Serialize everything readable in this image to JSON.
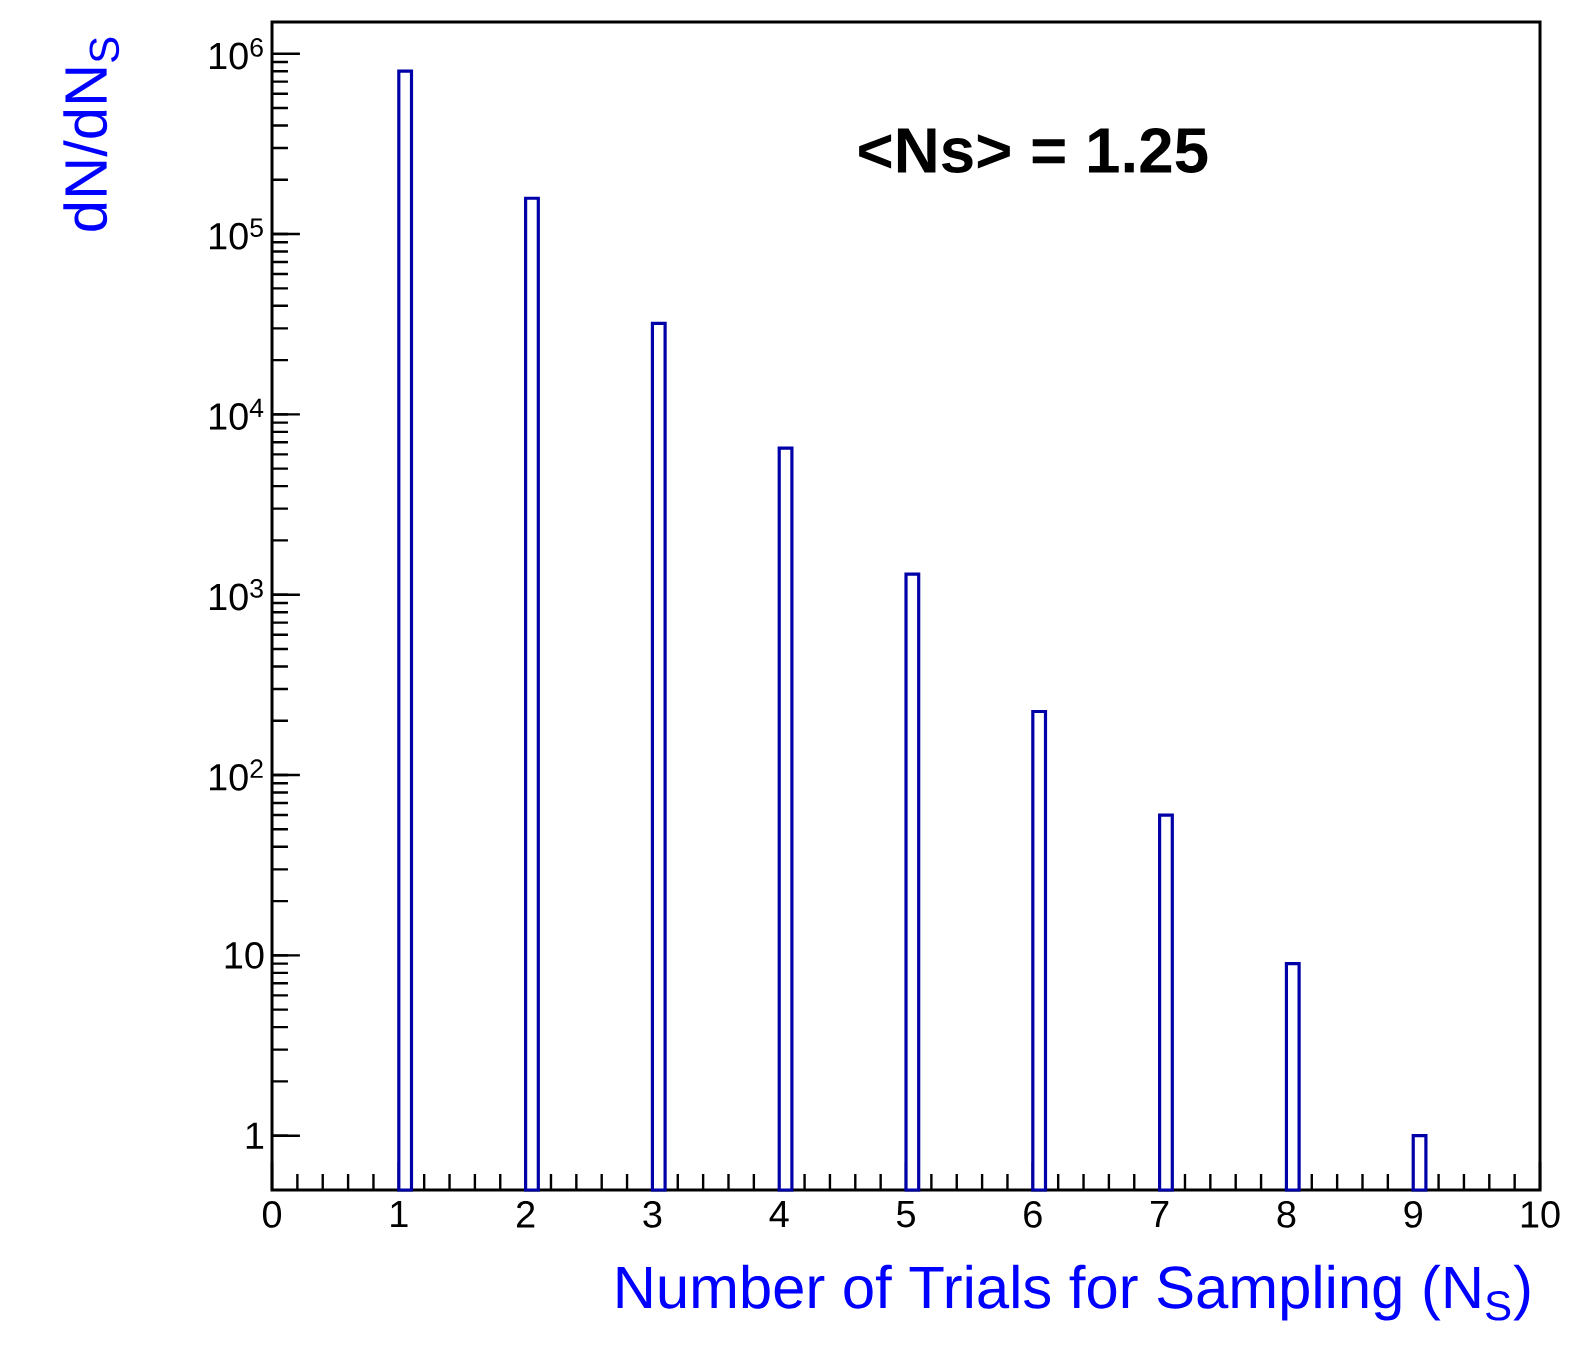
{
  "chart_data": {
    "type": "histogram",
    "xlabel": "Number of Trials for Sampling (N$_{S}$)",
    "ylabel": "dN/dN$_{S}$",
    "annotations": [
      "<Ns> = 1.25"
    ],
    "bins": [
      1,
      1.1,
      2,
      2.1,
      3,
      3.1,
      4,
      4.1,
      5,
      5.1,
      6,
      6.1,
      7,
      7.1,
      8,
      8.1,
      9,
      9.1
    ],
    "values": [
      800000,
      null,
      158000,
      null,
      32000,
      null,
      6500,
      null,
      1300,
      null,
      225,
      null,
      60,
      null,
      9,
      null,
      1
    ],
    "color": "#0000a8",
    "log": "y",
    "xlim": [
      0,
      10
    ],
    "ylim": [
      0.5,
      1500000
    ],
    "xticks": [
      0,
      1,
      2,
      3,
      4,
      5,
      6,
      7,
      8,
      9,
      10
    ],
    "yticks": [
      1,
      10,
      {
        "value": 100,
        "label": "10$^{2}$"
      },
      {
        "value": 1000,
        "label": "10$^{3}$"
      },
      {
        "value": 10000,
        "label": "10$^{4}$"
      },
      {
        "value": 100000,
        "label": "10$^{5}$"
      },
      {
        "value": 1000000,
        "label": "10$^{6}$"
      }
    ],
    "grid": false
  }
}
